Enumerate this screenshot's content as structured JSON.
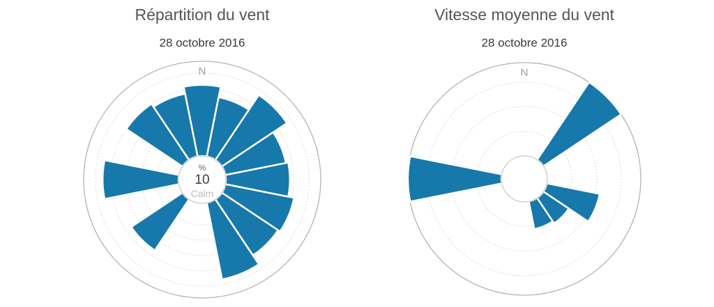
{
  "page": {
    "background": "#ffffff"
  },
  "colors": {
    "bar": "#1778ab",
    "pane_border": "#b3b3b3",
    "grid": "#c9ced3",
    "hole_border": "#c6c6c6",
    "title": "#565656",
    "subtitle": "#3a3a3a",
    "north_label": "#9e9e9e",
    "center_unit": "#666666",
    "center_value": "#3f3f3f",
    "center_caption": "#bcbcbc"
  },
  "chart_data": [
    {
      "type": "wind_rose_polar_bar",
      "title": "Répartition du vent",
      "subtitle": "28 octobre 2016",
      "north_label": "N",
      "center_label": {
        "unit": "%",
        "value": "10",
        "caption": "Calm"
      },
      "axis_note": "polar axis unlabeled; values are bar length as % of pane radius; dotted gridlines, no tick labels",
      "layout": {
        "pane_radius": 170,
        "hole_radius": 34,
        "grid_radii": [
          65,
          87,
          109,
          131,
          153
        ],
        "sector_width_deg": 22.5
      },
      "series": [
        {
          "name": "Répartition du vent",
          "unit": "relative (% of pane radius)",
          "points": [
            {
              "direction": "N",
              "value": 80
            },
            {
              "direction": "NNE",
              "value": 71
            },
            {
              "direction": "NE",
              "value": 86
            },
            {
              "direction": "ENE",
              "value": 72
            },
            {
              "direction": "E",
              "value": 74
            },
            {
              "direction": "ESE",
              "value": 79
            },
            {
              "direction": "SE",
              "value": 77
            },
            {
              "direction": "SSE",
              "value": 86
            },
            {
              "direction": "S",
              "value": 0
            },
            {
              "direction": "SSW",
              "value": 0
            },
            {
              "direction": "SW",
              "value": 72
            },
            {
              "direction": "WSW",
              "value": 0
            },
            {
              "direction": "W",
              "value": 84
            },
            {
              "direction": "WNW",
              "value": 0
            },
            {
              "direction": "NW",
              "value": 77
            },
            {
              "direction": "NNW",
              "value": 74
            }
          ]
        }
      ]
    },
    {
      "type": "wind_rose_polar_bar",
      "title": "Vitesse moyenne du vent",
      "subtitle": "28 octobre 2016",
      "north_label": "N",
      "center_label": null,
      "axis_note": "polar axis unlabeled; values are bar length as % of pane radius; NE and W bars reach the pane edge (clipped at max)",
      "layout": {
        "pane_radius": 167,
        "hole_radius": 33,
        "grid_radii": [
          68,
          104,
          139
        ],
        "sector_width_deg": 22.5
      },
      "series": [
        {
          "name": "Vitesse moyenne du vent",
          "unit": "relative (% of pane radius)",
          "points": [
            {
              "direction": "N",
              "value": 0
            },
            {
              "direction": "NNE",
              "value": 0
            },
            {
              "direction": "NE",
              "value": 100
            },
            {
              "direction": "ENE",
              "value": 0
            },
            {
              "direction": "E",
              "value": 0
            },
            {
              "direction": "ESE",
              "value": 66
            },
            {
              "direction": "SE",
              "value": 46
            },
            {
              "direction": "SSE",
              "value": 44
            },
            {
              "direction": "S",
              "value": 0
            },
            {
              "direction": "SSW",
              "value": 0
            },
            {
              "direction": "SW",
              "value": 0
            },
            {
              "direction": "WSW",
              "value": 0
            },
            {
              "direction": "W",
              "value": 100
            },
            {
              "direction": "WNW",
              "value": 0
            },
            {
              "direction": "NW",
              "value": 0
            },
            {
              "direction": "NNW",
              "value": 0
            }
          ]
        }
      ]
    }
  ]
}
